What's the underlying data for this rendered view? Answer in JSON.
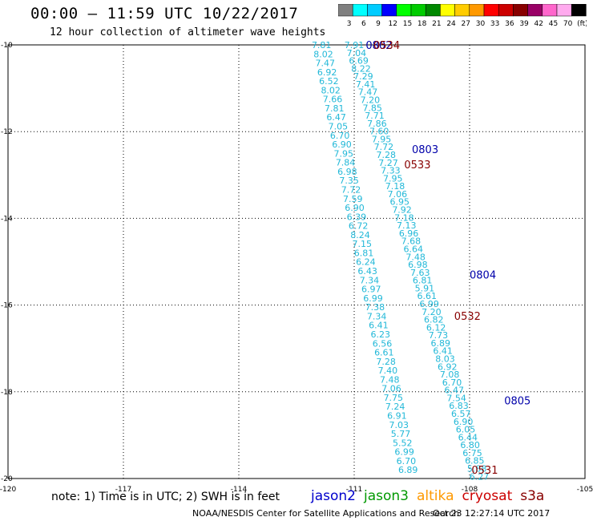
{
  "title": "00:00 – 11:59 UTC 10/22/2017",
  "subtitle": "12 hour collection of altimeter wave heights",
  "colorbar": {
    "labels": [
      "3",
      "6",
      "9",
      "12",
      "15",
      "18",
      "21",
      "24",
      "27",
      "30",
      "33",
      "36",
      "39",
      "42",
      "45",
      "70",
      "(ft)"
    ],
    "colors": [
      "#808080",
      "#00ffff",
      "#00ccff",
      "#0000ff",
      "#00ff00",
      "#00cc00",
      "#008800",
      "#ffff00",
      "#ffcc00",
      "#ff9900",
      "#ff0000",
      "#cc0000",
      "#880000",
      "#990066",
      "#ff66cc",
      "#ffaaee",
      "#000000"
    ]
  },
  "axes": {
    "lon_ticks": [
      "-120",
      "-117",
      "-114",
      "-111",
      "-108",
      "-105"
    ],
    "lat_ticks": [
      "-10",
      "-12",
      "-14",
      "-16",
      "-18",
      "-20"
    ]
  },
  "note": "note: 1) Time is in UTC; 2) SWH is in feet",
  "legend": [
    {
      "name": "jason2",
      "color": "#0000cc"
    },
    {
      "name": "jason3",
      "color": "#009900"
    },
    {
      "name": "altika",
      "color": "#ff9900"
    },
    {
      "name": "cryosat",
      "color": "#cc0000"
    },
    {
      "name": "s3a",
      "color": "#880000"
    }
  ],
  "credit": "NOAA/NESDIS Center for Satellite Applications and Research",
  "stamp": "Oct 23 12:27:14 UTC 2017",
  "time_labels": [
    {
      "text": "0802",
      "lon": -110.7,
      "lat": -10.0,
      "color": "#0000aa"
    },
    {
      "text": "0534",
      "lon": -110.5,
      "lat": -10.0,
      "color": "#880000"
    },
    {
      "text": "0803",
      "lon": -109.5,
      "lat": -12.4,
      "color": "#0000aa"
    },
    {
      "text": "0533",
      "lon": -109.7,
      "lat": -12.75,
      "color": "#880000"
    },
    {
      "text": "0804",
      "lon": -108.0,
      "lat": -15.3,
      "color": "#0000aa"
    },
    {
      "text": "0532",
      "lon": -108.4,
      "lat": -16.25,
      "color": "#880000"
    },
    {
      "text": "0805",
      "lon": -107.1,
      "lat": -18.2,
      "color": "#0000aa"
    },
    {
      "text": "0531",
      "lon": -107.95,
      "lat": -19.8,
      "color": "#880000"
    }
  ],
  "track_left": {
    "start": [
      -111.85,
      -10.0
    ],
    "end": [
      -109.6,
      -19.8
    ],
    "values": [
      "7.81",
      "8.02",
      "7.47",
      "6.92",
      "6.52",
      "8.02",
      "7.66",
      "7.81",
      "6.47",
      "7.05",
      "6.70",
      "6.90",
      "7.95",
      "7.84",
      "6.98",
      "7.35",
      "7.72",
      "7.59",
      "6.90",
      "6.39",
      "6.72",
      "8.24",
      "7.15",
      "6.81",
      "6.24",
      "6.43",
      "7.34",
      "6.97",
      "6.99",
      "7.38",
      "7.34",
      "6.41",
      "6.23",
      "6.56",
      "6.61",
      "7.28",
      "7.40",
      "7.48",
      "7.06",
      "7.75",
      "7.24",
      "6.91",
      "7.03",
      "5.77",
      "5.52",
      "6.99",
      "6.70",
      "6.89"
    ]
  },
  "track_right": {
    "start": [
      -111.0,
      -10.0
    ],
    "end": [
      -107.75,
      -19.95
    ],
    "values": [
      "7.91",
      "7.04",
      "6.69",
      "8.22",
      "7.29",
      "7.41",
      "7.47",
      "7.20",
      "7.85",
      "7.71",
      "7.86",
      "7.60",
      "7.95",
      "7.72",
      "7.28",
      "7.27",
      "7.33",
      "7.95",
      "7.18",
      "7.06",
      "6.95",
      "7.92",
      "7.18",
      "7.13",
      "6.96",
      "7.68",
      "6.64",
      "7.48",
      "6.98",
      "7.63",
      "6.81",
      "5.91",
      "6.61",
      "6.99",
      "7.20",
      "6.82",
      "6.12",
      "7.73",
      "6.89",
      "6.41",
      "8.03",
      "6.92",
      "7.08",
      "6.70",
      "6.47",
      "7.54",
      "6.83",
      "6.57",
      "6.90",
      "6.05",
      "6.44",
      "6.80",
      "6.75",
      "6.85",
      "5.88",
      "6.27"
    ]
  }
}
